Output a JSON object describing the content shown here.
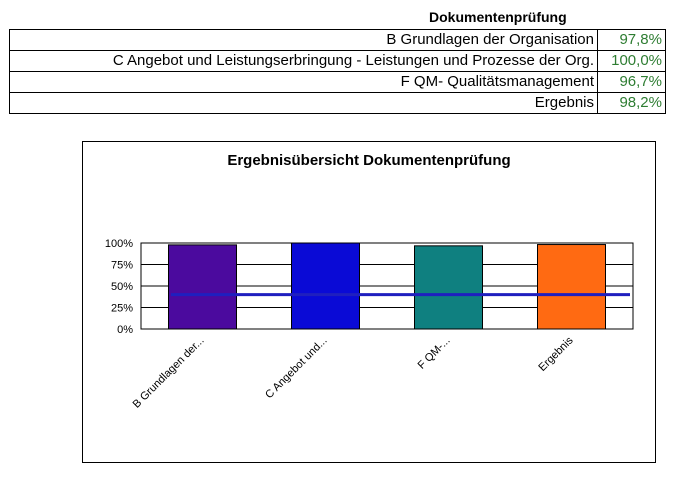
{
  "table": {
    "title": "Dokumentenprüfung",
    "rows": [
      {
        "label": "B Grundlagen der Organisation",
        "value": "97,8%"
      },
      {
        "label": "C Angebot und Leistungserbringung - Leistungen und Prozesse der Org.",
        "value": "100,0%"
      },
      {
        "label": "F QM- Qualitätsmanagement",
        "value": "96,7%"
      },
      {
        "label": "Ergebnis",
        "value": "98,2%"
      }
    ]
  },
  "chart_data": {
    "type": "bar",
    "title": "Ergebnisübersicht Dokumentenprüfung",
    "categories": [
      "B Grundlagen der...",
      "C Angebot und...",
      "F QM-...",
      "Ergebnis"
    ],
    "values": [
      97.8,
      100.0,
      96.7,
      98.2
    ],
    "bar_colors": [
      "#4b0a9e",
      "#0a0ad6",
      "#0f8080",
      "#ff6a12"
    ],
    "threshold": {
      "value": 40,
      "color": "#1f1fbf"
    },
    "yticks": [
      "100%",
      "75%",
      "50%",
      "25%",
      "0%"
    ],
    "ylim": [
      0,
      100
    ],
    "grid": true,
    "xlabel": "",
    "ylabel": ""
  }
}
